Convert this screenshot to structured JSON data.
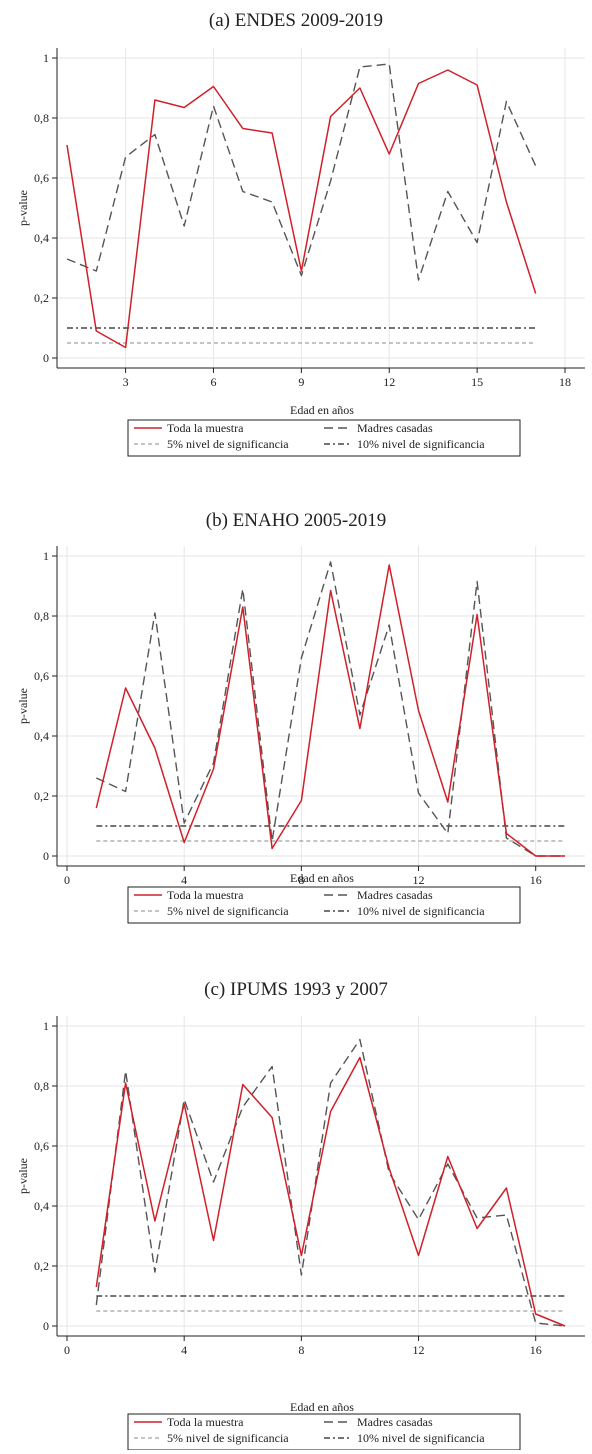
{
  "chart_data": [
    {
      "type": "line",
      "title": "(a) ENDES 2009-2019",
      "xlabel": "Edad en años",
      "ylabel": "p-value",
      "xlim": [
        1,
        18
      ],
      "ylim": [
        0,
        1
      ],
      "xticks": [
        3,
        6,
        9,
        12,
        15,
        18
      ],
      "yticks": [
        0,
        0.2,
        0.4,
        0.6,
        0.8,
        1
      ],
      "ytick_labels": [
        "0",
        "0,2",
        "0,4",
        "0,6",
        "0,8",
        "1"
      ],
      "grid": true,
      "legend_position": "bottom",
      "series": [
        {
          "name": "Toda la muestra",
          "color": "#d0202a",
          "style": "solid",
          "x": [
            1,
            2,
            3,
            4,
            5,
            6,
            7,
            8,
            9,
            10,
            11,
            12,
            13,
            14,
            15,
            16,
            17
          ],
          "y": [
            0.71,
            0.09,
            0.035,
            0.86,
            0.835,
            0.905,
            0.765,
            0.75,
            0.29,
            0.805,
            0.9,
            0.68,
            0.915,
            0.96,
            0.91,
            0.52,
            0.215
          ]
        },
        {
          "name": "Madres casadas",
          "color": "#555555",
          "style": "dash",
          "x": [
            1,
            2,
            3,
            4,
            5,
            6,
            7,
            8,
            9,
            10,
            11,
            12,
            13,
            14,
            15,
            16,
            17
          ],
          "y": [
            0.33,
            0.29,
            0.67,
            0.745,
            0.44,
            0.84,
            0.555,
            0.52,
            0.275,
            0.59,
            0.97,
            0.98,
            0.26,
            0.555,
            0.385,
            0.855,
            0.64
          ]
        },
        {
          "name": "5% nivel de significancia",
          "color": "#888888",
          "style": "short-dash",
          "x": [
            1,
            17
          ],
          "y": [
            0.05,
            0.05
          ]
        },
        {
          "name": "10% nivel de significancia",
          "color": "#222222",
          "style": "dash-dot",
          "x": [
            1,
            17
          ],
          "y": [
            0.1,
            0.1
          ]
        }
      ]
    },
    {
      "type": "line",
      "title": "(b) ENAHO 2005-2019",
      "xlabel": "Edad en años",
      "ylabel": "p-value",
      "xlim": [
        0,
        17
      ],
      "ylim": [
        0,
        1
      ],
      "xticks": [
        0,
        4,
        8,
        12,
        16
      ],
      "yticks": [
        0,
        0.2,
        0.4,
        0.6,
        0.8,
        1
      ],
      "ytick_labels": [
        "0",
        "0,2",
        "0,4",
        "0,6",
        "0,8",
        "1"
      ],
      "grid": true,
      "legend_position": "bottom",
      "series": [
        {
          "name": "Toda la muestra",
          "color": "#d0202a",
          "style": "solid",
          "x": [
            1,
            2,
            3,
            4,
            5,
            6,
            7,
            8,
            9,
            10,
            11,
            12,
            13,
            14,
            15,
            16,
            17
          ],
          "y": [
            0.16,
            0.56,
            0.36,
            0.045,
            0.29,
            0.83,
            0.025,
            0.185,
            0.885,
            0.425,
            0.97,
            0.485,
            0.18,
            0.805,
            0.075,
            0.0,
            0.0
          ]
        },
        {
          "name": "Madres casadas",
          "color": "#555555",
          "style": "dash",
          "x": [
            1,
            2,
            3,
            4,
            5,
            6,
            7,
            8,
            9,
            10,
            11,
            12,
            13,
            14,
            15,
            16,
            17
          ],
          "y": [
            0.26,
            0.215,
            0.81,
            0.11,
            0.31,
            0.89,
            0.05,
            0.66,
            0.98,
            0.47,
            0.77,
            0.21,
            0.075,
            0.915,
            0.06,
            0.0,
            0.0
          ]
        },
        {
          "name": "5% nivel de significancia",
          "color": "#888888",
          "style": "short-dash",
          "x": [
            1,
            17
          ],
          "y": [
            0.05,
            0.05
          ]
        },
        {
          "name": "10% nivel de significancia",
          "color": "#222222",
          "style": "dash-dot",
          "x": [
            1,
            17
          ],
          "y": [
            0.1,
            0.1
          ]
        }
      ]
    },
    {
      "type": "line",
      "title": "(c) IPUMS 1993 y 2007",
      "xlabel": "Edad en años",
      "ylabel": "p-value",
      "xlim": [
        0,
        17
      ],
      "ylim": [
        0,
        1
      ],
      "xticks": [
        0,
        4,
        8,
        12,
        16
      ],
      "yticks": [
        0,
        0.2,
        0.4,
        0.6,
        0.8,
        1
      ],
      "ytick_labels": [
        "0",
        "0,2",
        "0,4",
        "0,6",
        "0,8",
        "1"
      ],
      "grid": true,
      "legend_position": "bottom",
      "series": [
        {
          "name": "Toda la muestra",
          "color": "#d0202a",
          "style": "solid",
          "x": [
            1,
            2,
            3,
            4,
            5,
            6,
            7,
            8,
            9,
            10,
            11,
            12,
            13,
            14,
            15,
            16,
            17
          ],
          "y": [
            0.13,
            0.81,
            0.35,
            0.74,
            0.285,
            0.805,
            0.695,
            0.235,
            0.715,
            0.895,
            0.525,
            0.235,
            0.565,
            0.325,
            0.46,
            0.04,
            0.0
          ]
        },
        {
          "name": "Madres casadas",
          "color": "#555555",
          "style": "dash",
          "x": [
            1,
            2,
            3,
            4,
            5,
            6,
            7,
            8,
            9,
            10,
            11,
            12,
            13,
            14,
            15,
            16,
            17
          ],
          "y": [
            0.07,
            0.85,
            0.18,
            0.755,
            0.48,
            0.73,
            0.865,
            0.17,
            0.81,
            0.955,
            0.51,
            0.355,
            0.54,
            0.36,
            0.37,
            0.01,
            0.0
          ]
        },
        {
          "name": "5% nivel de significancia",
          "color": "#888888",
          "style": "short-dash",
          "x": [
            1,
            17
          ],
          "y": [
            0.05,
            0.05
          ]
        },
        {
          "name": "10% nivel de significancia",
          "color": "#222222",
          "style": "dash-dot",
          "x": [
            1,
            17
          ],
          "y": [
            0.1,
            0.1
          ]
        }
      ]
    }
  ]
}
